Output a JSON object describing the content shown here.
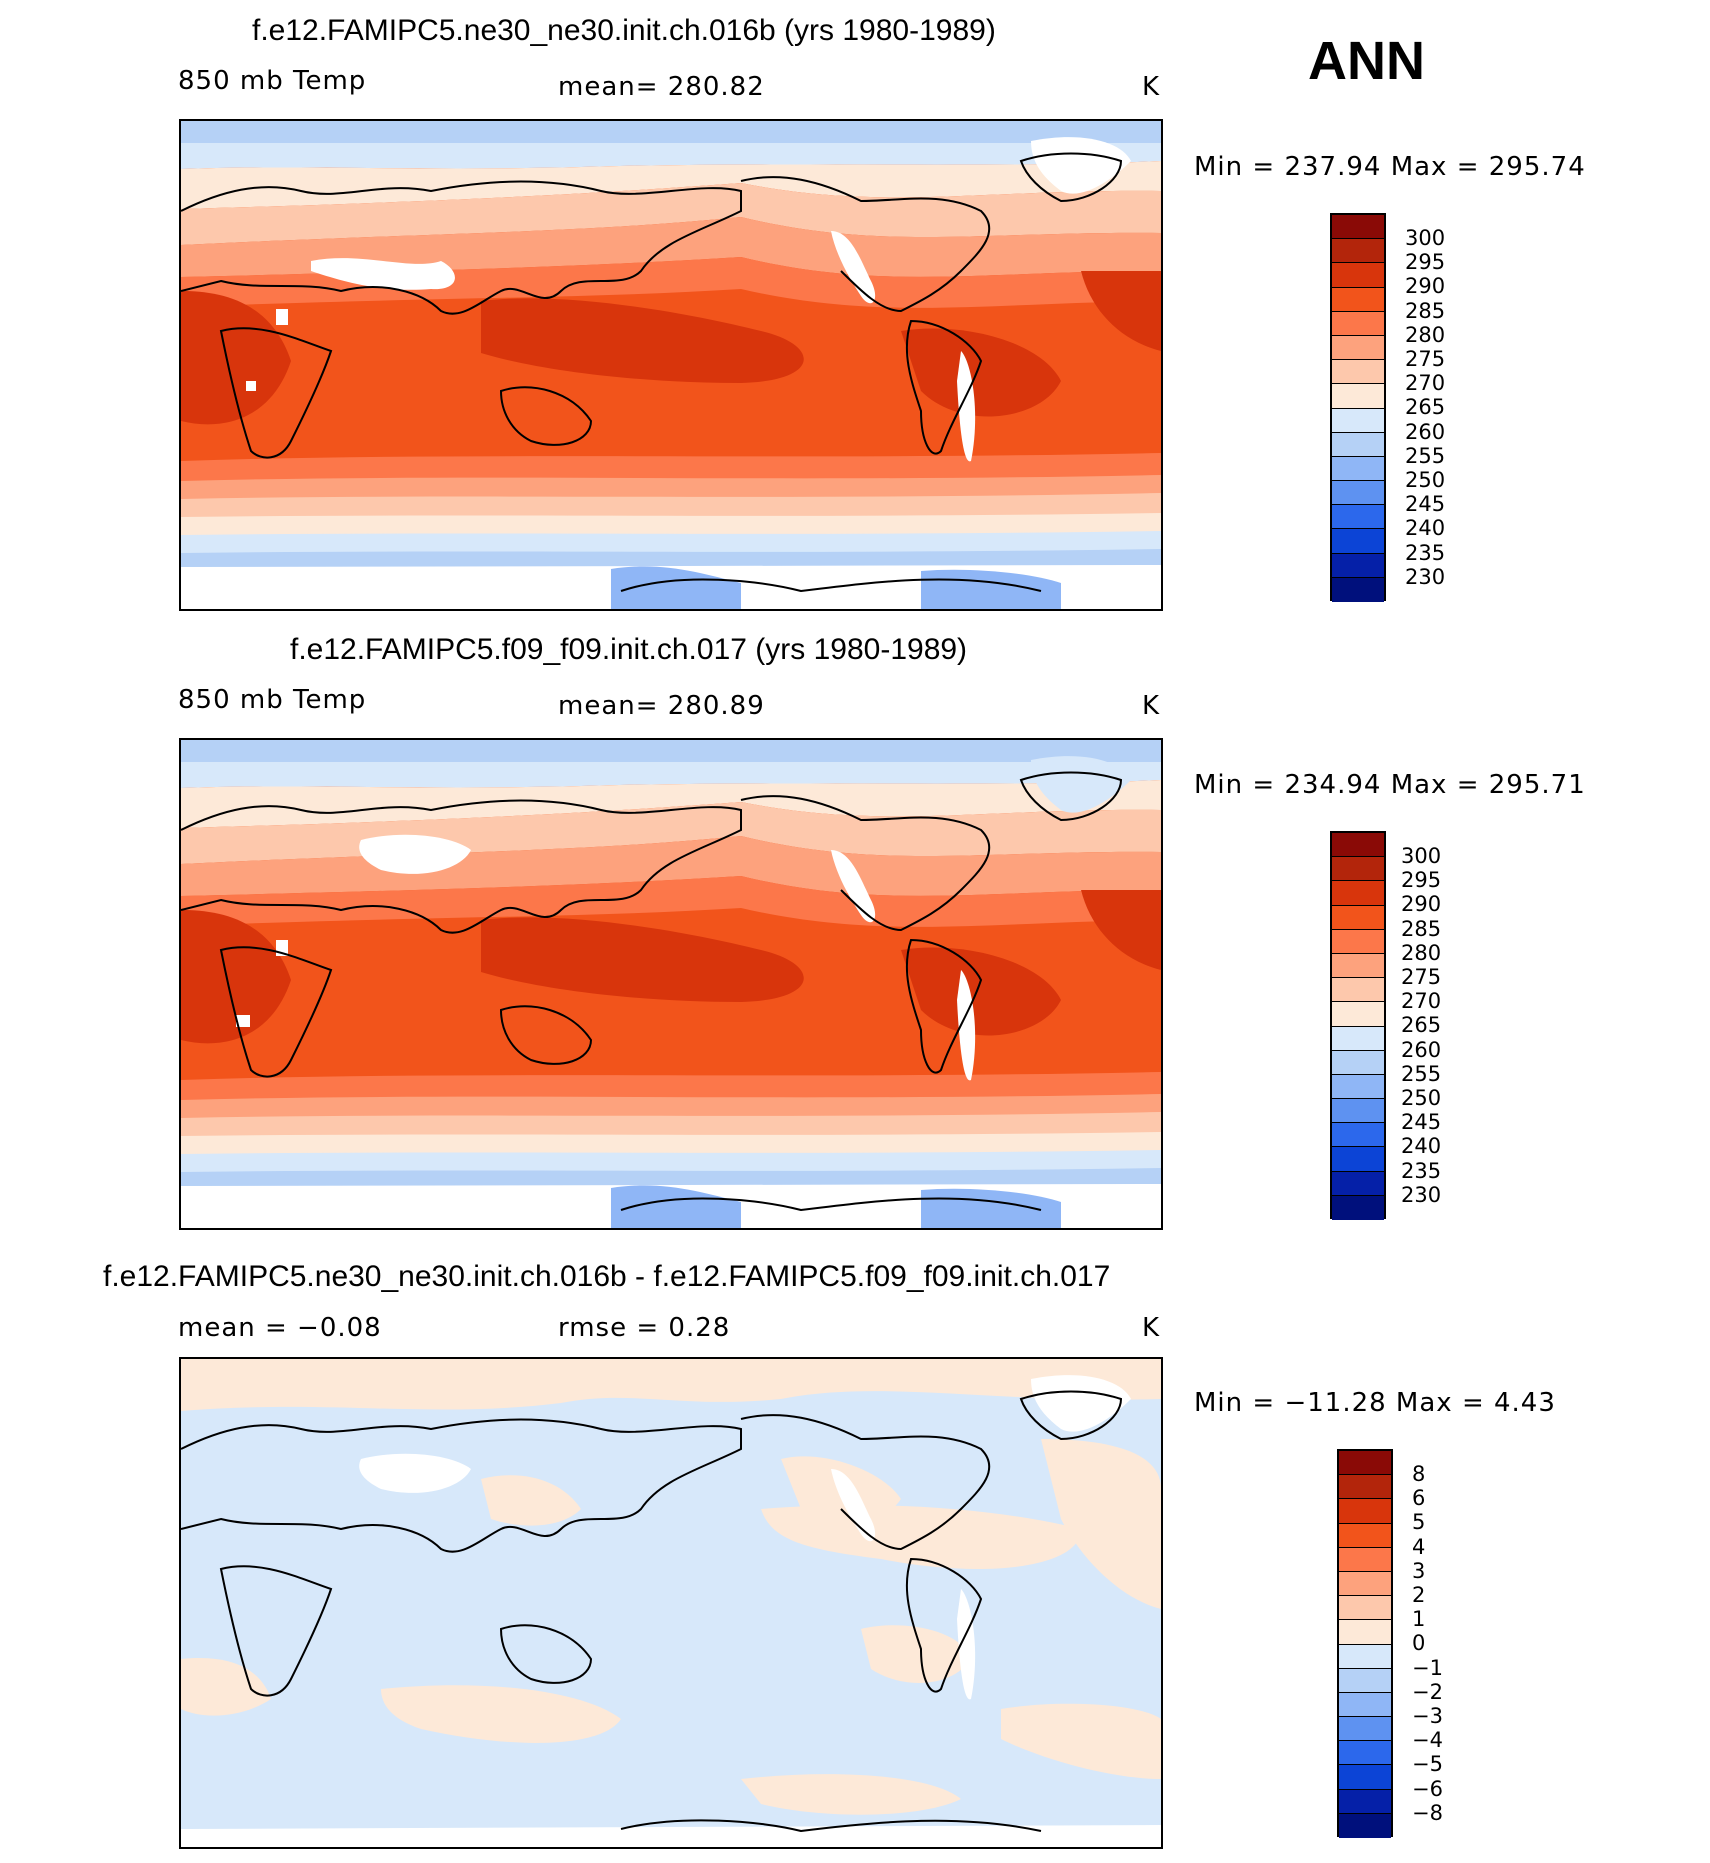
{
  "season": "ANN",
  "panels": [
    {
      "title": "f.e12.FAMIPC5.ne30_ne30.init.ch.016b (yrs 1980-1989)",
      "left_label": "850 mb Temp",
      "center_label": "mean= 280.82",
      "units": "K",
      "minmax": "Min = 237.94 Max = 295.74",
      "colorbar_labels": [
        "300",
        "295",
        "290",
        "285",
        "280",
        "275",
        "270",
        "265",
        "260",
        "255",
        "250",
        "245",
        "240",
        "235",
        "230"
      ],
      "colorbar_colors": [
        "#8a0a06",
        "#b3250b",
        "#d8350c",
        "#f2541b",
        "#fc774a",
        "#fda27d",
        "#fdc8ac",
        "#fde9d8",
        "#d7e8fa",
        "#b5d1f6",
        "#8fb6f6",
        "#5e92f1",
        "#2c68ec",
        "#0c44d6",
        "#0520a8",
        "#00107c"
      ]
    },
    {
      "title": "f.e12.FAMIPC5.f09_f09.init.ch.017 (yrs 1980-1989)",
      "left_label": "850 mb Temp",
      "center_label": "mean= 280.89",
      "units": "K",
      "minmax": "Min = 234.94 Max = 295.71",
      "colorbar_labels": [
        "300",
        "295",
        "290",
        "285",
        "280",
        "275",
        "270",
        "265",
        "260",
        "255",
        "250",
        "245",
        "240",
        "235",
        "230"
      ],
      "colorbar_colors": [
        "#8a0a06",
        "#b3250b",
        "#d8350c",
        "#f2541b",
        "#fc774a",
        "#fda27d",
        "#fdc8ac",
        "#fde9d8",
        "#d7e8fa",
        "#b5d1f6",
        "#8fb6f6",
        "#5e92f1",
        "#2c68ec",
        "#0c44d6",
        "#0520a8",
        "#00107c"
      ]
    },
    {
      "title": "f.e12.FAMIPC5.ne30_ne30.init.ch.016b - f.e12.FAMIPC5.f09_f09.init.ch.017",
      "left_label": "mean = −0.08",
      "center_label": "rmse = 0.28",
      "units": "K",
      "minmax": "Min = −11.28 Max = 4.43",
      "colorbar_labels": [
        "8",
        "6",
        "5",
        "4",
        "3",
        "2",
        "1",
        "0",
        "−1",
        "−2",
        "−3",
        "−4",
        "−5",
        "−6",
        "−8"
      ],
      "colorbar_colors": [
        "#8a0a06",
        "#b3250b",
        "#d8350c",
        "#f2541b",
        "#fc774a",
        "#fda27d",
        "#fdc8ac",
        "#fde9d8",
        "#d7e8fa",
        "#b5d1f6",
        "#8fb6f6",
        "#5e92f1",
        "#2c68ec",
        "#0c44d6",
        "#0520a8",
        "#00107c"
      ]
    }
  ]
}
